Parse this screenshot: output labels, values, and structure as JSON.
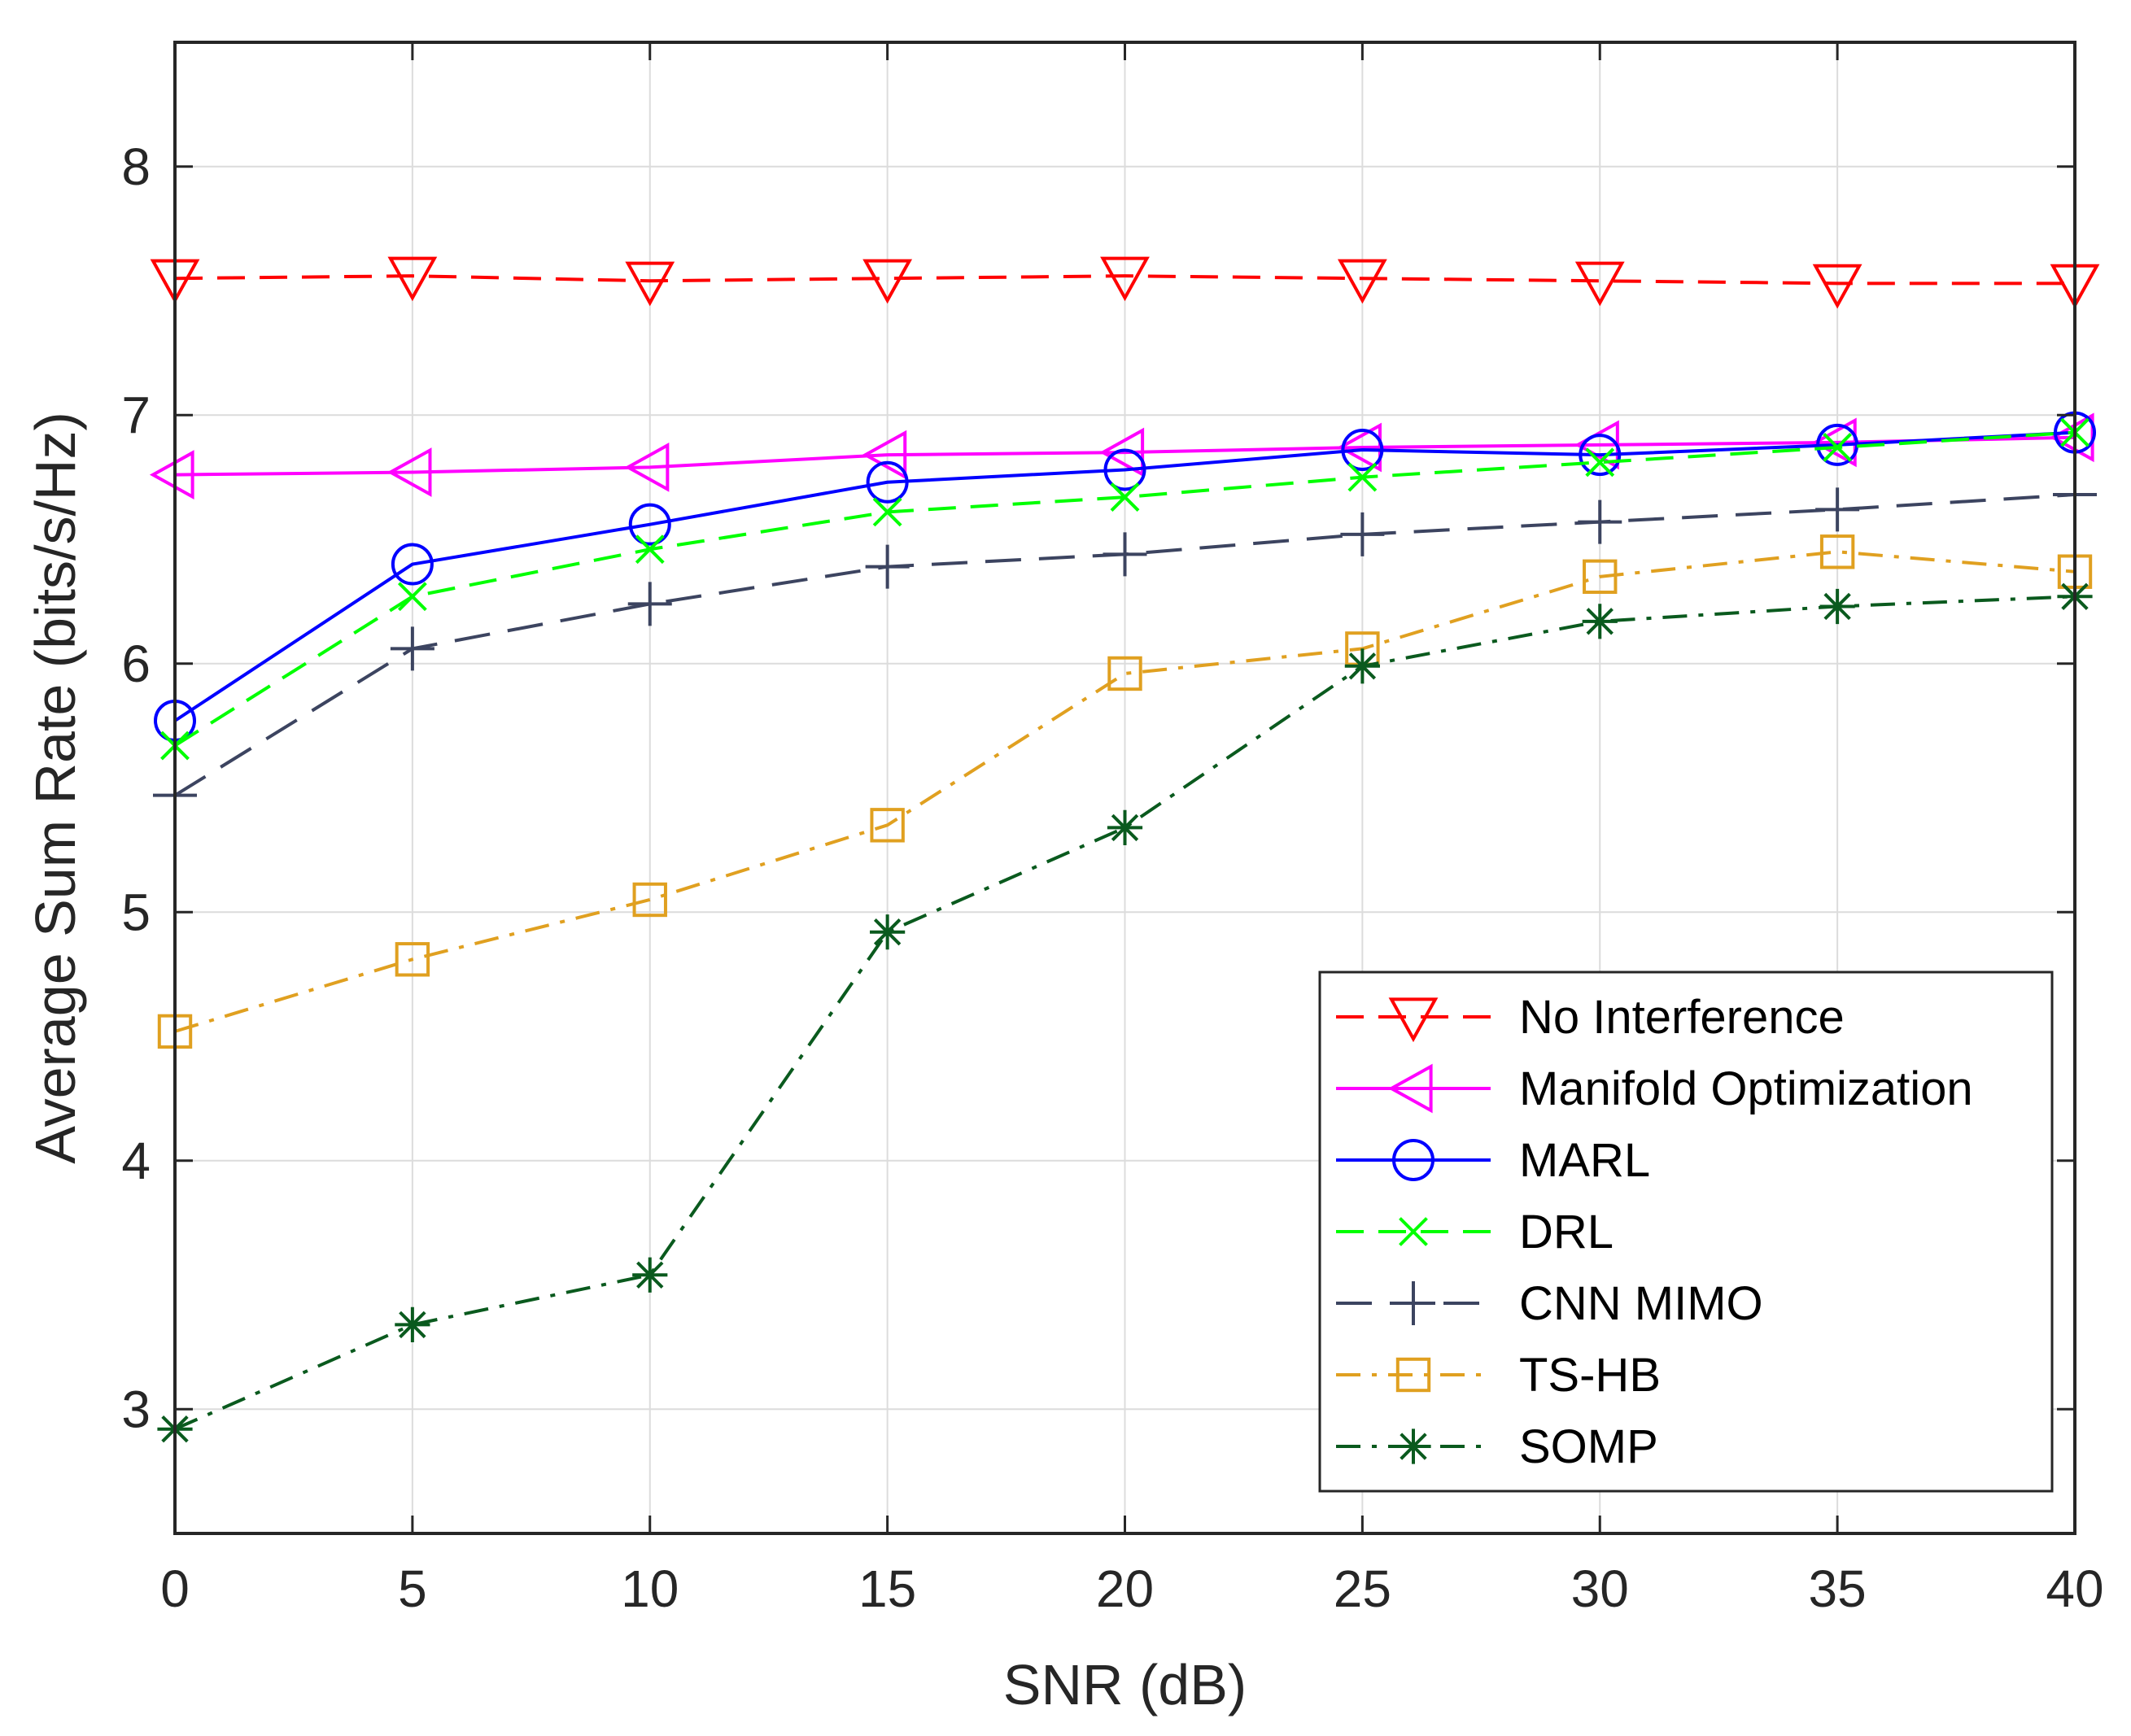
{
  "chart_data": {
    "type": "line",
    "title": "",
    "xlabel": "SNR (dB)",
    "ylabel": "Average Sum Rate (bits/s/Hz)",
    "xlim": [
      0,
      40
    ],
    "ylim": [
      2.5,
      8.5
    ],
    "grid": true,
    "legend_position": "bottom-right",
    "x": [
      0,
      5,
      10,
      15,
      20,
      25,
      30,
      35,
      40
    ],
    "xticks": [
      "0",
      "5",
      "10",
      "15",
      "20",
      "25",
      "30",
      "35",
      "40"
    ],
    "yticks": [
      "3",
      "4",
      "5",
      "6",
      "7",
      "8"
    ],
    "series": [
      {
        "name": "No Interference",
        "color": "#ff0000",
        "dash": "dashed",
        "marker": "triangle-down",
        "values": [
          7.55,
          7.56,
          7.54,
          7.55,
          7.56,
          7.55,
          7.54,
          7.53,
          7.53
        ]
      },
      {
        "name": "Manifold Optimization",
        "color": "#ff00ff",
        "dash": "solid",
        "marker": "triangle-left",
        "values": [
          6.76,
          6.77,
          6.79,
          6.84,
          6.85,
          6.87,
          6.88,
          6.89,
          6.91
        ]
      },
      {
        "name": "MARL",
        "color": "#0000ff",
        "dash": "solid",
        "marker": "circle",
        "values": [
          5.77,
          6.4,
          6.56,
          6.73,
          6.78,
          6.86,
          6.84,
          6.88,
          6.93
        ]
      },
      {
        "name": "DRL",
        "color": "#00ff00",
        "dash": "dashed",
        "marker": "x",
        "values": [
          5.67,
          6.27,
          6.46,
          6.61,
          6.67,
          6.75,
          6.81,
          6.87,
          6.93
        ]
      },
      {
        "name": "CNN MIMO",
        "color": "#3c4460",
        "dash": "longdash",
        "marker": "plus",
        "values": [
          5.47,
          6.06,
          6.24,
          6.39,
          6.44,
          6.52,
          6.57,
          6.62,
          6.68
        ]
      },
      {
        "name": "TS-HB",
        "color": "#e0a020",
        "dash": "dashdot",
        "marker": "square",
        "values": [
          4.52,
          4.81,
          5.05,
          5.35,
          5.96,
          6.06,
          6.35,
          6.45,
          6.37
        ]
      },
      {
        "name": "SOMP",
        "color": "#0a5a1e",
        "dash": "dashdot",
        "marker": "asterisk",
        "values": [
          2.92,
          3.34,
          3.54,
          4.92,
          5.34,
          5.99,
          6.17,
          6.23,
          6.27
        ]
      }
    ]
  }
}
